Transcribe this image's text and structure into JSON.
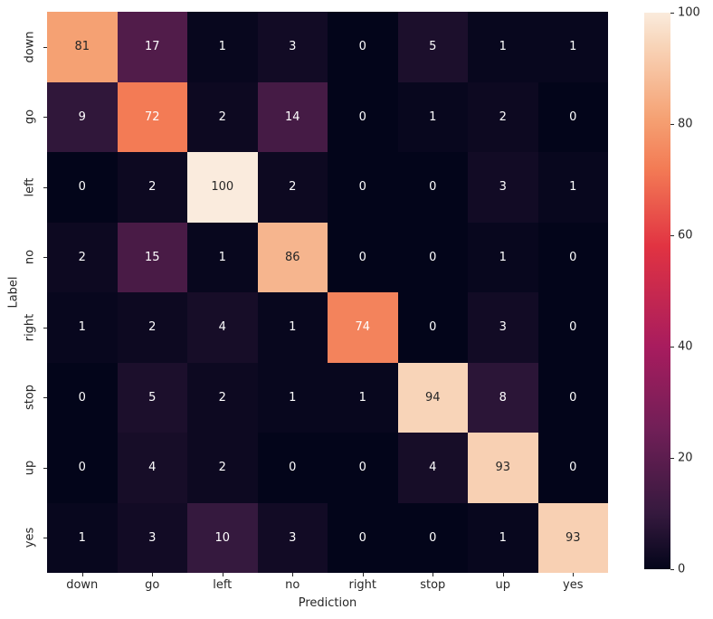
{
  "chart_data": {
    "type": "heatmap",
    "title": "",
    "xlabel": "Prediction",
    "ylabel": "Label",
    "x_categories": [
      "down",
      "go",
      "left",
      "no",
      "right",
      "stop",
      "up",
      "yes"
    ],
    "y_categories": [
      "down",
      "go",
      "left",
      "no",
      "right",
      "stop",
      "up",
      "yes"
    ],
    "values": [
      [
        81,
        17,
        1,
        3,
        0,
        5,
        1,
        1
      ],
      [
        9,
        72,
        2,
        14,
        0,
        1,
        2,
        0
      ],
      [
        0,
        2,
        100,
        2,
        0,
        0,
        3,
        1
      ],
      [
        2,
        15,
        1,
        86,
        0,
        0,
        1,
        0
      ],
      [
        1,
        2,
        4,
        1,
        74,
        0,
        3,
        0
      ],
      [
        0,
        5,
        2,
        1,
        1,
        94,
        8,
        0
      ],
      [
        0,
        4,
        2,
        0,
        0,
        4,
        93,
        0
      ],
      [
        1,
        3,
        10,
        3,
        0,
        0,
        1,
        93
      ]
    ],
    "vmin": 0,
    "vmax": 100,
    "colorbar_ticks": [
      0,
      20,
      40,
      60,
      80,
      100
    ],
    "colormap_name": "rocket",
    "colormap_stops": [
      [
        0.0,
        "#03051A"
      ],
      [
        0.1,
        "#35193E"
      ],
      [
        0.25,
        "#701F57"
      ],
      [
        0.4,
        "#A81C5E"
      ],
      [
        0.58,
        "#E13342"
      ],
      [
        0.72,
        "#F37B55"
      ],
      [
        0.81,
        "#F5A173"
      ],
      [
        0.94,
        "#F8D4B8"
      ],
      [
        1.0,
        "#FAEBDD"
      ]
    ],
    "annot_color_dark": "#262626",
    "annot_color_light": "#FFFFFF",
    "legend_position": "right",
    "grid": false
  },
  "colors": {
    "background": "#FFFFFF",
    "tick_text": "#262626"
  }
}
